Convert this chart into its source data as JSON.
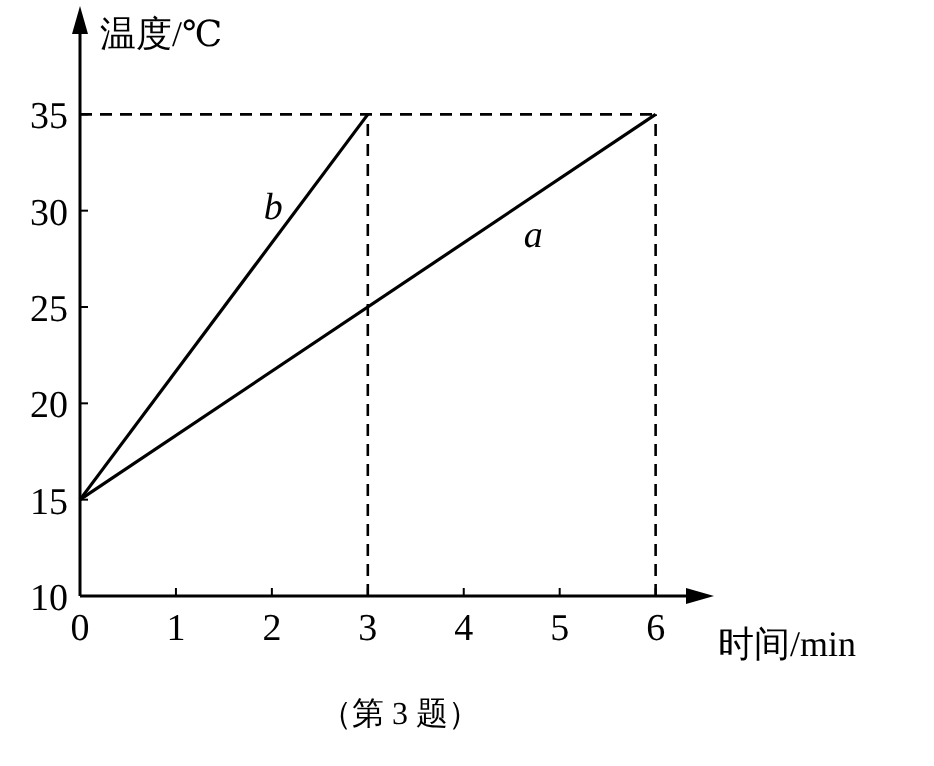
{
  "chart_data": {
    "type": "line",
    "xlabel": "时间/min",
    "ylabel": "温度/℃",
    "xlim": [
      0,
      6.4
    ],
    "ylim": [
      10,
      40
    ],
    "xticks": [
      0,
      1,
      2,
      3,
      4,
      5,
      6
    ],
    "yticks": [
      10,
      15,
      20,
      25,
      30,
      35
    ],
    "grid": false,
    "marker": "none",
    "line_style": "solid",
    "series": [
      {
        "name": "a",
        "color": "#000000",
        "x": [
          0,
          6
        ],
        "values": [
          15,
          35
        ]
      },
      {
        "name": "b",
        "color": "#000000",
        "x": [
          0,
          3
        ],
        "values": [
          15,
          35
        ]
      }
    ],
    "ref_lines": [
      {
        "axis": "y",
        "value": 35,
        "line_style": "dashed",
        "color": "#000000"
      },
      {
        "axis": "x",
        "value": 3,
        "line_style": "dashed",
        "color": "#000000"
      },
      {
        "axis": "x",
        "value": 6,
        "line_style": "dashed",
        "color": "#000000"
      }
    ],
    "annotations": [
      "（第 3 题）"
    ]
  }
}
